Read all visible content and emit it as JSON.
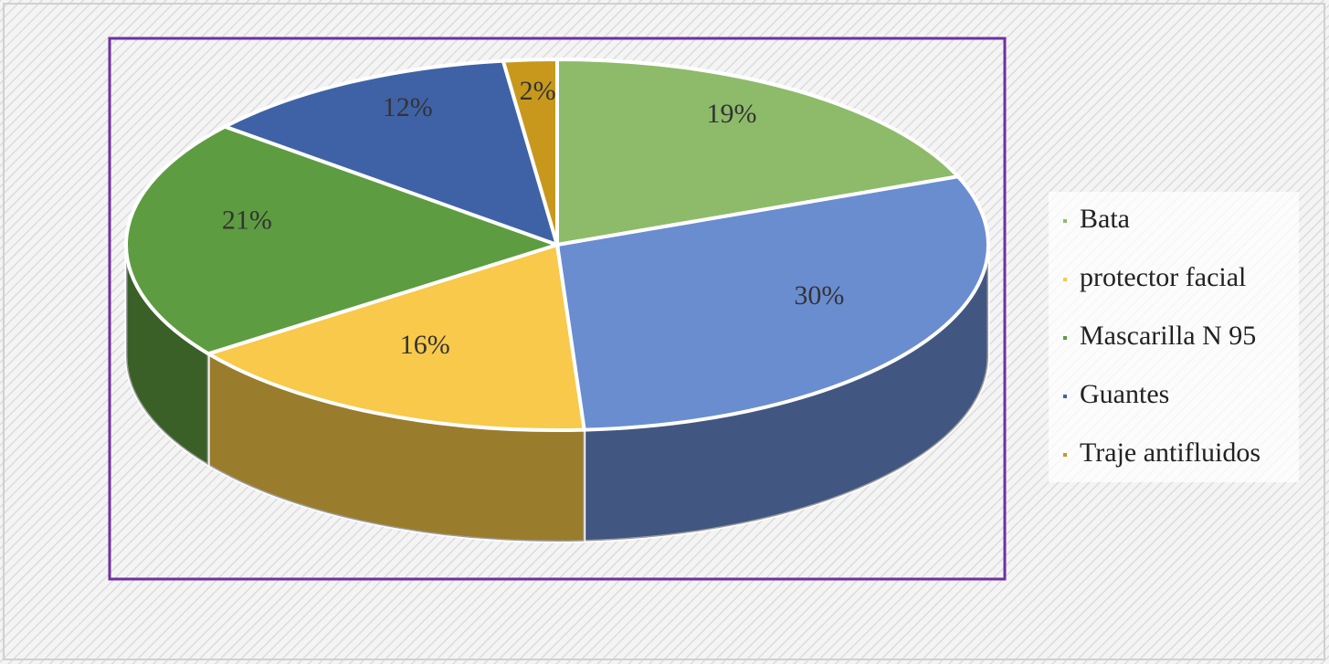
{
  "chart_data": {
    "type": "pie",
    "categories": [
      "Bata",
      null,
      "protector facial",
      "Mascarilla N 95",
      "Guantes",
      "Traje antifluidos"
    ],
    "values": [
      19,
      30,
      16,
      21,
      12,
      2
    ],
    "value_labels": [
      "19%",
      "30%",
      "16%",
      "21%",
      "12%",
      "2%"
    ],
    "colors": [
      "#8dbb6a",
      "#6a8dd0",
      "#f8c94a",
      "#5e9c41",
      "#3f62a6",
      "#c7981c"
    ],
    "legend": "right"
  }
}
